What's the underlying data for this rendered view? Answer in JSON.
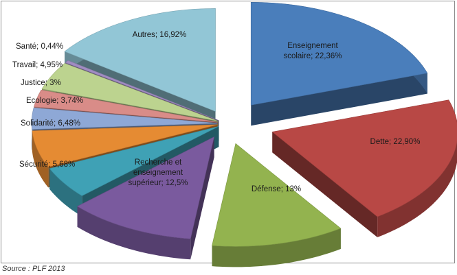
{
  "source": "Source : PLF 2013",
  "chart_data": {
    "type": "pie",
    "style": "3d-exploded",
    "title": "",
    "legend": "none",
    "slices": [
      {
        "label": "Enseignement scolaire",
        "value": 22.36,
        "display": "Enseignement scolaire; 22,36%",
        "color": "#4a7ebb"
      },
      {
        "label": "Dette",
        "value": 22.9,
        "display": "Dette; 22,90%",
        "color": "#b84845"
      },
      {
        "label": "Défense",
        "value": 13,
        "display": "Défense; 13%",
        "color": "#93b34f"
      },
      {
        "label": "Recherche et enseignement supérieur",
        "value": 12.5,
        "display": "Recherche et enseignement supérieur; 12,5%",
        "color": "#7a5a9e"
      },
      {
        "label": "Sécurité",
        "value": 5.68,
        "display": "Sécurité; 5,68%",
        "color": "#3fa1b5"
      },
      {
        "label": "Solidarité",
        "value": 6.48,
        "display": "Solidarité; 6,48%",
        "color": "#e58b33"
      },
      {
        "label": "Ecologie",
        "value": 3.74,
        "display": "Ecologie; 3,74%",
        "color": "#8ea8d6"
      },
      {
        "label": "Justice",
        "value": 3,
        "display": "Justice; 3%",
        "color": "#d98c88"
      },
      {
        "label": "Travail",
        "value": 4.95,
        "display": "Travail; 4,95%",
        "color": "#bcd38f"
      },
      {
        "label": "Santé",
        "value": 0.44,
        "display": "Santé; 0,44%",
        "color": "#a08cc2"
      },
      {
        "label": "Autres",
        "value": 16.92,
        "display": "Autres; 16,92%",
        "color": "#92c6d6"
      }
    ]
  }
}
